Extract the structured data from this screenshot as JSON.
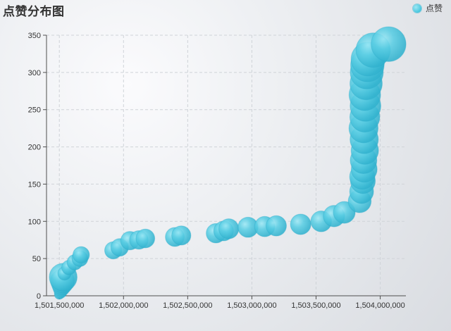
{
  "header": {
    "title": "点赞分布图",
    "legend_label": "点赞"
  },
  "colors": {
    "bubble_fill": "#4bc7df",
    "bubble_edge": "#2aa9c8",
    "grid": "#cfd3d8",
    "axis": "#4f4f4f",
    "title": "#333333"
  },
  "chart_data": {
    "type": "scatter",
    "title": "点赞分布图",
    "xlabel": "",
    "ylabel": "",
    "xlim": [
      1501400000,
      1504200000
    ],
    "ylim": [
      0,
      350
    ],
    "x_ticks": [
      1501500000,
      1502000000,
      1502500000,
      1503000000,
      1503500000,
      1504000000
    ],
    "x_tick_labels": [
      "1,501,500,000",
      "1,502,000,000",
      "1,502,500,000",
      "1,503,000,000",
      "1,503,500,000",
      "1,504,000,000"
    ],
    "y_ticks": [
      0,
      50,
      100,
      150,
      200,
      250,
      300,
      350
    ],
    "y_tick_labels": [
      "0",
      "50",
      "100",
      "150",
      "200",
      "250",
      "300",
      "350"
    ],
    "grid": true,
    "legend_position": "top-right",
    "size_encoding": "bubble area scales with 点赞 (y value)",
    "series": [
      {
        "name": "点赞",
        "points": [
          [
            1501500000,
            2
          ],
          [
            1501510000,
            5
          ],
          [
            1501515000,
            10
          ],
          [
            1501520000,
            15
          ],
          [
            1501525000,
            20
          ],
          [
            1501530000,
            25
          ],
          [
            1501540000,
            30
          ],
          [
            1501575000,
            38
          ],
          [
            1501620000,
            45
          ],
          [
            1501660000,
            50
          ],
          [
            1501670000,
            55
          ],
          [
            1501920000,
            61
          ],
          [
            1501970000,
            65
          ],
          [
            1502050000,
            74
          ],
          [
            1502120000,
            75
          ],
          [
            1502170000,
            77
          ],
          [
            1502400000,
            79
          ],
          [
            1502450000,
            81
          ],
          [
            1502720000,
            84
          ],
          [
            1502780000,
            87
          ],
          [
            1502820000,
            90
          ],
          [
            1502970000,
            92
          ],
          [
            1503100000,
            93
          ],
          [
            1503190000,
            94
          ],
          [
            1503380000,
            96
          ],
          [
            1503540000,
            100
          ],
          [
            1503640000,
            107
          ],
          [
            1503720000,
            112
          ],
          [
            1503840000,
            127
          ],
          [
            1503855000,
            140
          ],
          [
            1503865000,
            154
          ],
          [
            1503860000,
            160
          ],
          [
            1503875000,
            170
          ],
          [
            1503870000,
            182
          ],
          [
            1503880000,
            195
          ],
          [
            1503875000,
            210
          ],
          [
            1503870000,
            225
          ],
          [
            1503880000,
            240
          ],
          [
            1503885000,
            255
          ],
          [
            1503880000,
            270
          ],
          [
            1503890000,
            285
          ],
          [
            1503895000,
            300
          ],
          [
            1503900000,
            310
          ],
          [
            1503905000,
            318
          ],
          [
            1503945000,
            330
          ],
          [
            1504065000,
            338
          ]
        ]
      }
    ]
  }
}
